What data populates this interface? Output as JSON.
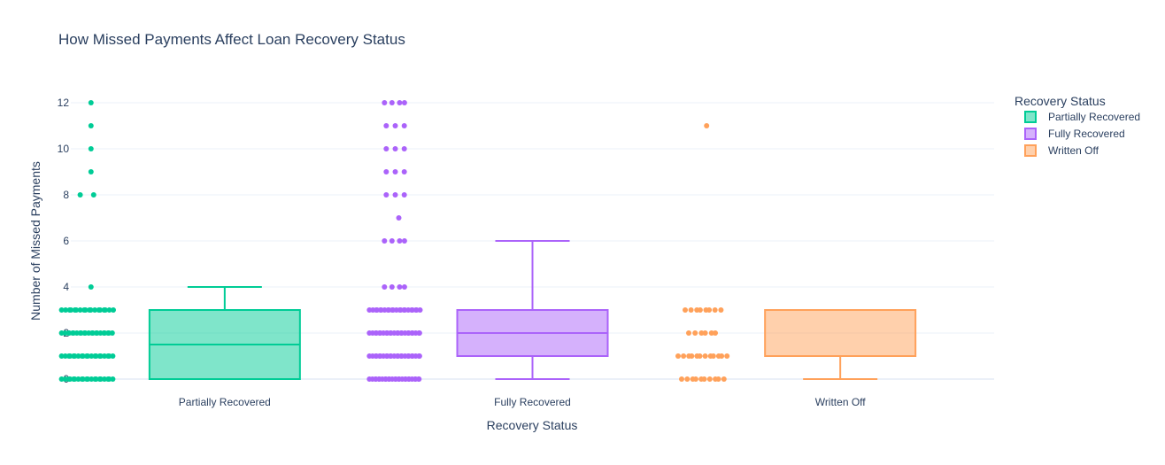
{
  "chart_data": {
    "type": "box",
    "title": "How Missed Payments Affect Loan Recovery Status",
    "xlabel": "Recovery Status",
    "ylabel": "Number of Missed Payments",
    "ylim": [
      -0.5,
      13.0
    ],
    "yticks": [
      0,
      2,
      4,
      6,
      8,
      10,
      12
    ],
    "ytick_labels": [
      "0",
      "2",
      "4",
      "6",
      "8",
      "10",
      "12"
    ],
    "grid": true,
    "legend": {
      "title": "Recovery Status",
      "position": "top-right"
    },
    "categories": [
      "Partially Recovered",
      "Fully Recovered",
      "Written Off"
    ],
    "series": [
      {
        "name": "Partially Recovered",
        "color": "#00cc96",
        "box": {
          "lowerfence": 0,
          "q1": 0,
          "median": 1.5,
          "q3": 3,
          "upperfence": 4
        },
        "points": [
          {
            "y": 12,
            "n": 1
          },
          {
            "y": 11,
            "n": 1
          },
          {
            "y": 10,
            "n": 1
          },
          {
            "y": 9,
            "n": 1
          },
          {
            "y": 8,
            "n": 2
          },
          {
            "y": 4,
            "n": 1
          },
          {
            "y": 3,
            "n": 18
          },
          {
            "y": 2,
            "n": 22
          },
          {
            "y": 1,
            "n": 20
          },
          {
            "y": 0,
            "n": 20
          }
        ]
      },
      {
        "name": "Fully Recovered",
        "color": "#ab63fa",
        "box": {
          "lowerfence": 0,
          "q1": 1,
          "median": 2,
          "q3": 3,
          "upperfence": 6
        },
        "points": [
          {
            "y": 12,
            "n": 4
          },
          {
            "y": 11,
            "n": 3
          },
          {
            "y": 10,
            "n": 3
          },
          {
            "y": 9,
            "n": 3
          },
          {
            "y": 8,
            "n": 3
          },
          {
            "y": 7,
            "n": 1
          },
          {
            "y": 6,
            "n": 4
          },
          {
            "y": 4,
            "n": 4
          },
          {
            "y": 3,
            "n": 22
          },
          {
            "y": 2,
            "n": 24
          },
          {
            "y": 1,
            "n": 24
          },
          {
            "y": 0,
            "n": 26
          }
        ]
      },
      {
        "name": "Written Off",
        "color": "#ffa15a",
        "box": {
          "lowerfence": 0,
          "q1": 1,
          "median": 1,
          "q3": 3,
          "upperfence": 3
        },
        "points": [
          {
            "y": 11,
            "n": 1
          },
          {
            "y": 3,
            "n": 8
          },
          {
            "y": 2,
            "n": 6
          },
          {
            "y": 1,
            "n": 12
          },
          {
            "y": 0,
            "n": 10
          }
        ]
      }
    ]
  }
}
